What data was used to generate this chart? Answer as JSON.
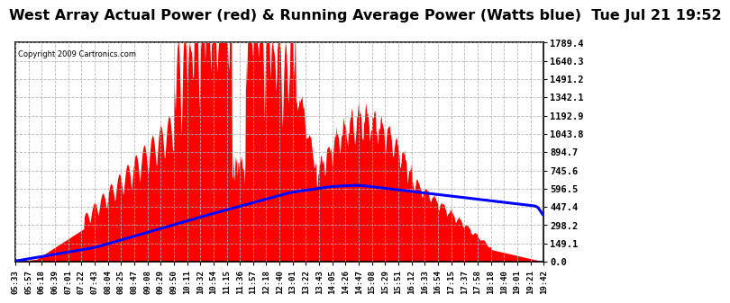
{
  "title": "West Array Actual Power (red) & Running Average Power (Watts blue)  Tue Jul 21 19:52",
  "copyright": "Copyright 2009 Cartronics.com",
  "ymax": 1789.4,
  "yticks": [
    0.0,
    149.1,
    298.2,
    447.4,
    596.5,
    745.6,
    894.7,
    1043.8,
    1192.9,
    1342.1,
    1491.2,
    1640.3,
    1789.4
  ],
  "background_color": "#ffffff",
  "fill_color": "#ff0000",
  "line_color": "#0000ff",
  "grid_color": "#b0b0b0",
  "title_fontsize": 11.5,
  "x_labels": [
    "05:33",
    "05:57",
    "06:18",
    "06:39",
    "07:01",
    "07:22",
    "07:43",
    "08:04",
    "08:25",
    "08:47",
    "09:08",
    "09:29",
    "09:50",
    "10:11",
    "10:32",
    "10:54",
    "11:15",
    "11:36",
    "11:57",
    "12:18",
    "12:40",
    "13:01",
    "13:22",
    "13:43",
    "14:05",
    "14:26",
    "14:47",
    "15:08",
    "15:29",
    "15:51",
    "16:12",
    "16:33",
    "16:54",
    "17:15",
    "17:37",
    "17:58",
    "18:18",
    "18:40",
    "19:01",
    "19:21",
    "19:42"
  ]
}
